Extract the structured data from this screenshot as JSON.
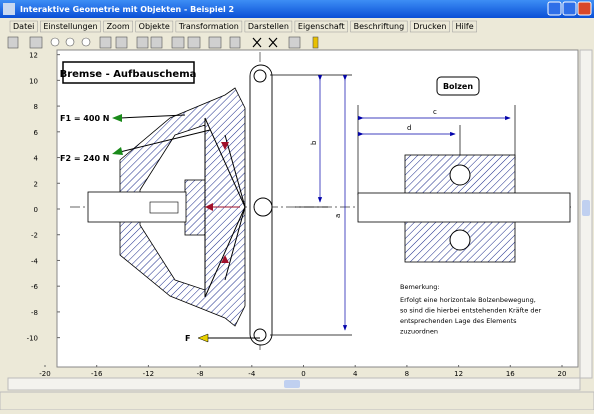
{
  "window": {
    "title": "Interaktive Geometrie mit Objekten - Beispiel 2"
  },
  "menu": [
    "Datei",
    "Einstellungen",
    "Zoom",
    "Objekte",
    "Transformation",
    "Darstellen",
    "Eigenschaft",
    "Beschriftung",
    "Drucken",
    "Hilfe"
  ],
  "axes": {
    "xticks": [
      -20,
      -16,
      -12,
      -8,
      -4,
      0,
      4,
      8,
      12,
      16,
      20
    ],
    "yticks": [
      12,
      10,
      8,
      6,
      4,
      2,
      0,
      -2,
      -4,
      -6,
      -8,
      -10
    ]
  },
  "drawing": {
    "title": "Bremse - Aufbauschema",
    "bolt_label": "Bolzen",
    "forces": [
      "F1 = 400 N",
      "F2 = 240 N",
      "F"
    ],
    "dimensions": [
      "a",
      "b",
      "c",
      "d"
    ],
    "remark": {
      "heading": "Bemerkung:",
      "lines": [
        "Erfolgt eine horizontale Bolzenbewegung,",
        "so sind die hierbei entstehenden Kräfte der",
        "entsprechenden Lage des Elements",
        "zuzuordnen"
      ]
    }
  }
}
